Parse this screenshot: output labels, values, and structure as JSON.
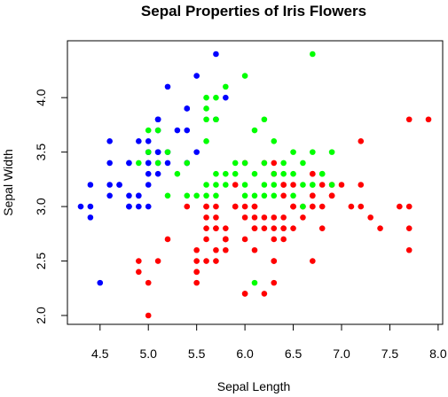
{
  "chart_data": {
    "type": "scatter",
    "title": "Sepal Properties of Iris Flowers",
    "xlabel": "Sepal Length",
    "ylabel": "Sepal Width",
    "xlim": [
      4.3,
      7.9
    ],
    "ylim": [
      2.0,
      4.4
    ],
    "xticks": [
      "4.5",
      "5.0",
      "5.5",
      "6.0",
      "6.5",
      "7.0",
      "7.5",
      "8.0"
    ],
    "yticks": [
      "2.0",
      "2.5",
      "3.0",
      "3.5",
      "4.0"
    ],
    "grid": false,
    "legend": "none",
    "series": [
      {
        "color": "#0000ff",
        "points": [
          [
            5.1,
            3.5
          ],
          [
            4.9,
            3.0
          ],
          [
            4.7,
            3.2
          ],
          [
            4.6,
            3.1
          ],
          [
            5.0,
            3.6
          ],
          [
            5.4,
            3.9
          ],
          [
            4.6,
            3.4
          ],
          [
            5.0,
            3.4
          ],
          [
            4.4,
            2.9
          ],
          [
            4.9,
            3.1
          ],
          [
            5.4,
            3.7
          ],
          [
            4.8,
            3.4
          ],
          [
            4.8,
            3.0
          ],
          [
            4.3,
            3.0
          ],
          [
            5.8,
            4.0
          ],
          [
            5.7,
            4.4
          ],
          [
            5.4,
            3.9
          ],
          [
            5.1,
            3.5
          ],
          [
            5.7,
            3.8
          ],
          [
            5.1,
            3.8
          ],
          [
            5.4,
            3.4
          ],
          [
            5.1,
            3.7
          ],
          [
            4.6,
            3.6
          ],
          [
            5.1,
            3.3
          ],
          [
            4.8,
            3.4
          ],
          [
            5.0,
            3.0
          ],
          [
            5.0,
            3.4
          ],
          [
            5.2,
            3.5
          ],
          [
            5.2,
            3.4
          ],
          [
            4.7,
            3.2
          ],
          [
            4.8,
            3.1
          ],
          [
            5.4,
            3.4
          ],
          [
            5.2,
            4.1
          ],
          [
            5.5,
            4.2
          ],
          [
            4.9,
            3.1
          ],
          [
            5.0,
            3.2
          ],
          [
            5.5,
            3.5
          ],
          [
            4.9,
            3.6
          ],
          [
            4.4,
            3.0
          ],
          [
            5.1,
            3.4
          ],
          [
            5.0,
            3.5
          ],
          [
            4.5,
            2.3
          ],
          [
            4.4,
            3.2
          ],
          [
            5.0,
            3.5
          ],
          [
            5.1,
            3.8
          ],
          [
            4.8,
            3.0
          ],
          [
            5.1,
            3.8
          ],
          [
            4.6,
            3.2
          ],
          [
            5.3,
            3.7
          ],
          [
            5.0,
            3.3
          ]
        ]
      },
      {
        "color": "#ff0000",
        "points": [
          [
            7.0,
            3.2
          ],
          [
            6.4,
            3.2
          ],
          [
            6.9,
            3.1
          ],
          [
            5.5,
            2.3
          ],
          [
            6.5,
            2.8
          ],
          [
            5.7,
            2.8
          ],
          [
            6.3,
            3.3
          ],
          [
            4.9,
            2.4
          ],
          [
            6.6,
            2.9
          ],
          [
            5.2,
            2.7
          ],
          [
            5.0,
            2.0
          ],
          [
            5.9,
            3.0
          ],
          [
            6.0,
            2.2
          ],
          [
            6.1,
            2.9
          ],
          [
            5.6,
            2.9
          ],
          [
            6.7,
            3.1
          ],
          [
            5.6,
            3.0
          ],
          [
            5.8,
            2.7
          ],
          [
            6.2,
            2.2
          ],
          [
            5.6,
            2.5
          ],
          [
            5.9,
            3.2
          ],
          [
            6.1,
            2.8
          ],
          [
            6.3,
            2.5
          ],
          [
            6.1,
            2.8
          ],
          [
            6.4,
            2.9
          ],
          [
            6.6,
            3.0
          ],
          [
            6.8,
            2.8
          ],
          [
            6.7,
            3.0
          ],
          [
            6.0,
            2.9
          ],
          [
            5.7,
            2.6
          ],
          [
            5.5,
            2.4
          ],
          [
            5.5,
            2.4
          ],
          [
            5.8,
            2.7
          ],
          [
            6.0,
            2.7
          ],
          [
            5.4,
            3.0
          ],
          [
            6.0,
            3.4
          ],
          [
            6.7,
            3.1
          ],
          [
            6.3,
            2.3
          ],
          [
            5.6,
            3.0
          ],
          [
            5.5,
            2.5
          ],
          [
            5.5,
            2.6
          ],
          [
            6.1,
            3.0
          ],
          [
            5.8,
            2.6
          ],
          [
            5.0,
            2.3
          ],
          [
            5.6,
            2.7
          ],
          [
            5.7,
            3.0
          ],
          [
            5.7,
            2.9
          ],
          [
            6.2,
            2.9
          ],
          [
            5.1,
            2.5
          ],
          [
            5.7,
            2.8
          ],
          [
            6.3,
            3.3
          ],
          [
            5.8,
            2.7
          ],
          [
            7.1,
            3.0
          ],
          [
            6.3,
            2.9
          ],
          [
            6.5,
            3.0
          ],
          [
            7.6,
            3.0
          ],
          [
            4.9,
            2.5
          ],
          [
            7.3,
            2.9
          ],
          [
            6.7,
            2.5
          ],
          [
            7.2,
            3.6
          ],
          [
            6.5,
            3.2
          ],
          [
            6.4,
            2.7
          ],
          [
            6.8,
            3.0
          ],
          [
            5.7,
            2.5
          ],
          [
            5.8,
            2.8
          ],
          [
            6.4,
            3.2
          ],
          [
            6.5,
            3.0
          ],
          [
            7.7,
            3.8
          ],
          [
            7.7,
            2.6
          ],
          [
            6.0,
            2.2
          ],
          [
            6.9,
            3.2
          ],
          [
            5.6,
            2.8
          ],
          [
            7.7,
            2.8
          ],
          [
            6.3,
            2.7
          ],
          [
            6.7,
            3.3
          ],
          [
            7.2,
            3.2
          ],
          [
            6.2,
            2.8
          ],
          [
            6.1,
            3.0
          ],
          [
            6.4,
            2.8
          ],
          [
            7.2,
            3.0
          ],
          [
            7.4,
            2.8
          ],
          [
            7.9,
            3.8
          ],
          [
            6.4,
            2.8
          ],
          [
            6.3,
            2.8
          ],
          [
            6.1,
            2.6
          ],
          [
            7.7,
            3.0
          ],
          [
            6.3,
            3.4
          ],
          [
            6.4,
            3.1
          ],
          [
            6.0,
            3.0
          ],
          [
            6.9,
            3.1
          ],
          [
            6.7,
            3.1
          ],
          [
            6.9,
            3.1
          ],
          [
            5.8,
            2.7
          ],
          [
            6.8,
            3.2
          ],
          [
            6.7,
            3.3
          ],
          [
            6.7,
            3.0
          ],
          [
            6.3,
            2.5
          ],
          [
            6.5,
            3.0
          ],
          [
            6.2,
            3.4
          ],
          [
            5.9,
            3.0
          ]
        ]
      },
      {
        "color": "#00ff00",
        "points": [
          [
            5.6,
            4.0
          ],
          [
            5.7,
            4.0
          ],
          [
            6.0,
            4.2
          ],
          [
            5.6,
            3.9
          ],
          [
            5.7,
            3.8
          ],
          [
            5.8,
            4.1
          ],
          [
            6.2,
            3.8
          ],
          [
            6.7,
            4.4
          ],
          [
            5.6,
            3.8
          ],
          [
            5.7,
            3.8
          ],
          [
            5.0,
            3.7
          ],
          [
            5.1,
            3.7
          ],
          [
            6.1,
            3.7
          ],
          [
            5.6,
            3.6
          ],
          [
            5.9,
            3.4
          ],
          [
            6.0,
            3.4
          ],
          [
            6.2,
            3.4
          ],
          [
            6.3,
            3.6
          ],
          [
            6.4,
            3.4
          ],
          [
            6.5,
            3.5
          ],
          [
            6.6,
            3.4
          ],
          [
            6.7,
            3.5
          ],
          [
            6.8,
            3.3
          ],
          [
            6.9,
            3.5
          ],
          [
            5.0,
            3.5
          ],
          [
            5.1,
            3.4
          ],
          [
            5.2,
            3.5
          ],
          [
            5.3,
            3.3
          ],
          [
            4.9,
            3.4
          ],
          [
            5.8,
            3.3
          ],
          [
            5.4,
            3.4
          ],
          [
            5.5,
            3.1
          ],
          [
            5.6,
            3.2
          ],
          [
            5.7,
            3.1
          ],
          [
            5.9,
            3.3
          ],
          [
            6.0,
            3.2
          ],
          [
            6.1,
            3.3
          ],
          [
            6.2,
            3.1
          ],
          [
            6.3,
            3.2
          ],
          [
            6.4,
            3.3
          ],
          [
            6.5,
            3.1
          ],
          [
            6.6,
            3.2
          ],
          [
            6.7,
            3.2
          ],
          [
            6.8,
            3.3
          ],
          [
            5.2,
            3.1
          ],
          [
            5.4,
            3.1
          ],
          [
            5.6,
            3.1
          ],
          [
            5.7,
            3.2
          ],
          [
            5.8,
            3.2
          ],
          [
            6.0,
            3.1
          ],
          [
            6.1,
            3.1
          ],
          [
            6.2,
            3.2
          ],
          [
            6.3,
            3.1
          ],
          [
            6.5,
            3.3
          ],
          [
            6.7,
            3.2
          ],
          [
            6.9,
            3.2
          ],
          [
            5.7,
            3.3
          ],
          [
            6.3,
            3.3
          ],
          [
            6.1,
            2.3
          ],
          [
            6.6,
            3.0
          ]
        ]
      }
    ]
  }
}
